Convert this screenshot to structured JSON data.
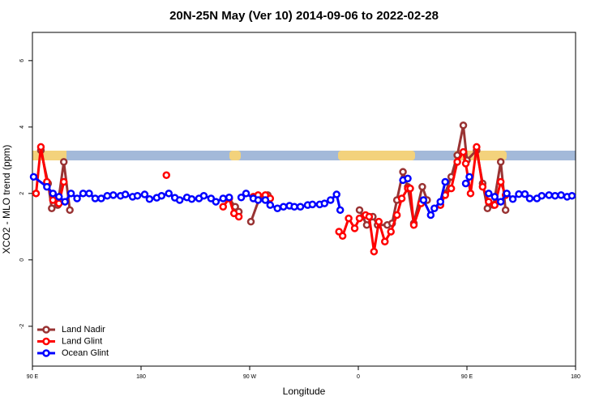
{
  "chart_data": {
    "type": "line",
    "title": "20N-25N May (Ver 10)   2014-09-06 to 2022-02-28",
    "x_label": "Longitude",
    "y_label": "XCO2 - MLO trend (ppm)",
    "xlim": [
      90,
      540
    ],
    "xticks": [
      {
        "value": 90,
        "label": "90 E"
      },
      180,
      {
        "value": 270,
        "label": "90 W"
      },
      {
        "value": 360,
        "label": "0"
      },
      {
        "value": 450,
        "label": "90 E"
      },
      180
    ],
    "ylim": [
      -3.2,
      6.85
    ],
    "yticks": [
      -2,
      0,
      2,
      4,
      6
    ],
    "legend": "bottom-left",
    "series": [
      {
        "name": "Land Nadir",
        "color": "#993333",
        "x": [
          97,
          103,
          106,
          111,
          116,
          121,
          null,
          253,
          258,
          261,
          null,
          271,
          278,
          285,
          null,
          361,
          367,
          372,
          376,
          384,
          388,
          392,
          397,
          401,
          406,
          413,
          417,
          null,
          428,
          432,
          437,
          442,
          447,
          450,
          458,
          463,
          467,
          472,
          478,
          482
        ],
        "values": [
          3.3,
          2.3,
          1.55,
          1.65,
          2.95,
          1.5,
          null,
          1.85,
          1.6,
          1.45,
          null,
          1.15,
          1.85,
          1.95,
          null,
          1.5,
          1.05,
          1.3,
          1.05,
          1.05,
          1.1,
          1.8,
          2.65,
          2.2,
          1.1,
          2.2,
          1.8,
          null,
          1.65,
          2.0,
          2.5,
          3.15,
          4.05,
          3.0,
          3.3,
          2.3,
          1.55,
          1.65,
          2.95,
          1.5
        ]
      },
      {
        "name": "Land Glint",
        "color": "#ff0000",
        "x": [
          93,
          97,
          102,
          107,
          112,
          116,
          null,
          201,
          null,
          248,
          253,
          257,
          261,
          null,
          273,
          277,
          283,
          287,
          null,
          344,
          347,
          352,
          357,
          361,
          366,
          369,
          373,
          377,
          382,
          387,
          392,
          396,
          401,
          403,
          406,
          412,
          null,
          428,
          432,
          437,
          442,
          447,
          449,
          453,
          458,
          463,
          468,
          473,
          478,
          482
        ],
        "values": [
          2.0,
          3.4,
          2.35,
          1.8,
          1.7,
          2.35,
          null,
          2.55,
          null,
          1.6,
          1.85,
          1.4,
          1.3,
          null,
          1.9,
          1.95,
          1.95,
          1.85,
          null,
          0.85,
          0.72,
          1.25,
          0.95,
          1.25,
          1.35,
          1.3,
          0.25,
          1.15,
          0.55,
          0.85,
          1.35,
          1.85,
          2.15,
          2.15,
          1.05,
          1.7,
          null,
          1.65,
          1.95,
          2.15,
          2.95,
          3.25,
          2.9,
          2.0,
          3.4,
          2.2,
          1.75,
          1.65,
          2.35,
          1.95
        ]
      },
      {
        "name": "Ocean Glint",
        "color": "#0000ff",
        "x": [
          91,
          102,
          107,
          112,
          117,
          122,
          127,
          132,
          137,
          142,
          147,
          152,
          157,
          163,
          167,
          173,
          177,
          183,
          187,
          193,
          197,
          203,
          208,
          212,
          218,
          222,
          228,
          232,
          238,
          242,
          248,
          253,
          null,
          263,
          267,
          273,
          277,
          283,
          287,
          293,
          298,
          303,
          307,
          312,
          318,
          322,
          328,
          332,
          337,
          342,
          345,
          null,
          397,
          401,
          null,
          414,
          420,
          423,
          428,
          432,
          null,
          449,
          452,
          null,
          468,
          473,
          478,
          483,
          488,
          493,
          498,
          502,
          508,
          512,
          518,
          523,
          528,
          533,
          537
        ],
        "values": [
          2.5,
          2.2,
          2.0,
          1.9,
          1.75,
          2.0,
          1.85,
          2.0,
          2.0,
          1.85,
          1.85,
          1.93,
          1.95,
          1.93,
          1.97,
          1.9,
          1.93,
          1.97,
          1.83,
          1.87,
          1.93,
          2.0,
          1.87,
          1.8,
          1.88,
          1.83,
          1.85,
          1.93,
          1.85,
          1.75,
          1.85,
          1.88,
          null,
          1.88,
          2.0,
          1.85,
          1.8,
          1.8,
          1.65,
          1.55,
          1.6,
          1.63,
          1.6,
          1.6,
          1.65,
          1.67,
          1.67,
          1.7,
          1.8,
          1.97,
          1.5,
          null,
          2.4,
          2.45,
          null,
          1.8,
          1.35,
          1.55,
          1.75,
          2.35,
          null,
          2.3,
          2.5,
          null,
          2.0,
          1.9,
          1.75,
          2.0,
          1.83,
          1.98,
          1.98,
          1.85,
          1.85,
          1.93,
          1.95,
          1.93,
          1.95,
          1.9,
          1.93
        ]
      }
    ]
  }
}
